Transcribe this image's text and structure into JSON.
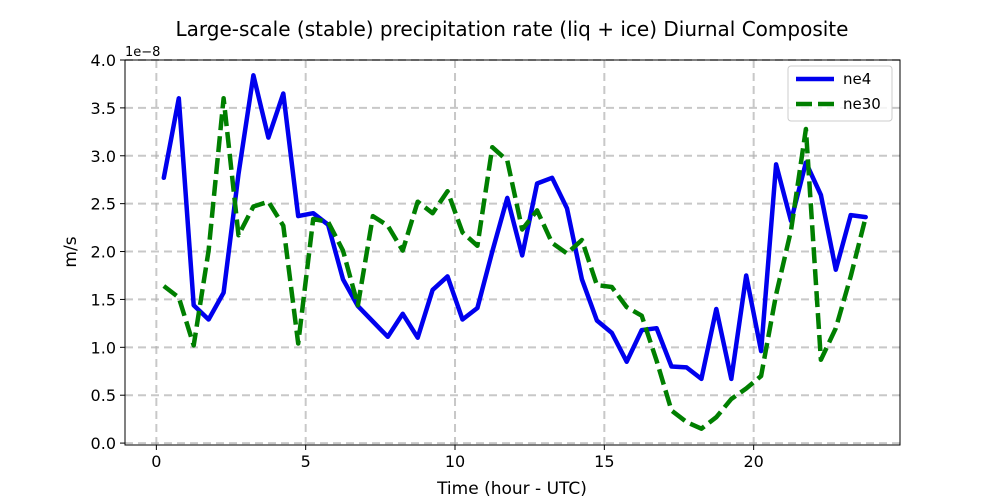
{
  "chart_data": {
    "type": "line",
    "title": "Large-scale (stable) precipitation rate (liq + ice) Diurnal Composite",
    "xlabel": "Time (hour - UTC)",
    "ylabel": "m/s",
    "y_offset_label": "1e−8",
    "xlim": [
      -1.05,
      24.9
    ],
    "ylim": [
      -0.02,
      4.0
    ],
    "x_ticks": [
      0,
      5,
      10,
      15,
      20
    ],
    "y_ticks": [
      0.0,
      0.5,
      1.0,
      1.5,
      2.0,
      2.5,
      3.0,
      3.5,
      4.0
    ],
    "x_tick_labels": [
      "0",
      "5",
      "10",
      "15",
      "20"
    ],
    "y_tick_labels": [
      "0.0",
      "0.5",
      "1.0",
      "1.5",
      "2.0",
      "2.5",
      "3.0",
      "3.5",
      "4.0"
    ],
    "grid": true,
    "legend_position": "top-right",
    "x": [
      0.25,
      0.75,
      1.25,
      1.75,
      2.25,
      2.75,
      3.25,
      3.75,
      4.25,
      4.75,
      5.25,
      5.75,
      6.25,
      6.75,
      7.25,
      7.75,
      8.25,
      8.75,
      9.25,
      9.75,
      10.25,
      10.75,
      11.25,
      11.75,
      12.25,
      12.75,
      13.25,
      13.75,
      14.25,
      14.75,
      15.25,
      15.75,
      16.25,
      16.75,
      17.25,
      17.75,
      18.25,
      18.75,
      19.25,
      19.75,
      20.25,
      20.75,
      21.25,
      21.75,
      22.25,
      22.75,
      23.25,
      23.75
    ],
    "series": [
      {
        "name": "ne4",
        "color": "#0000ee",
        "style": "solid",
        "values": [
          2.77,
          3.6,
          1.44,
          1.29,
          1.57,
          2.81,
          3.84,
          3.19,
          3.65,
          2.37,
          2.4,
          2.28,
          1.71,
          1.43,
          1.27,
          1.11,
          1.35,
          1.1,
          1.6,
          1.74,
          1.29,
          1.41,
          2.0,
          2.56,
          1.96,
          2.71,
          2.77,
          2.45,
          1.71,
          1.28,
          1.15,
          0.85,
          1.18,
          1.2,
          0.8,
          0.79,
          0.67,
          1.4,
          0.67,
          1.75,
          0.96,
          2.91,
          2.32,
          2.93,
          2.59,
          1.81,
          2.38,
          2.36
        ]
      },
      {
        "name": "ne30",
        "color": "#007f00",
        "style": "dashed",
        "values": [
          1.64,
          1.52,
          1.02,
          2.01,
          3.6,
          2.17,
          2.47,
          2.52,
          2.27,
          1.04,
          2.34,
          2.31,
          2.01,
          1.44,
          2.37,
          2.27,
          2.01,
          2.52,
          2.4,
          2.63,
          2.2,
          2.06,
          3.09,
          2.95,
          2.23,
          2.43,
          2.09,
          1.98,
          2.12,
          1.65,
          1.63,
          1.42,
          1.33,
          0.86,
          0.34,
          0.22,
          0.15,
          0.27,
          0.46,
          0.57,
          0.7,
          1.55,
          2.22,
          3.28,
          0.87,
          1.2,
          1.74,
          2.36
        ]
      }
    ]
  }
}
